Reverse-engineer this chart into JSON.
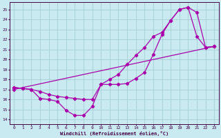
{
  "xlabel": "Windchill (Refroidissement éolien,°C)",
  "bg_color": "#c8eaf0",
  "line_color": "#aa00aa",
  "grid_color": "#a0c8d0",
  "xlim": [
    -0.5,
    23.5
  ],
  "ylim": [
    13.5,
    25.7
  ],
  "yticks": [
    14,
    15,
    16,
    17,
    18,
    19,
    20,
    21,
    22,
    23,
    24,
    25
  ],
  "xticks": [
    0,
    1,
    2,
    3,
    4,
    5,
    6,
    7,
    8,
    9,
    10,
    11,
    12,
    13,
    14,
    15,
    16,
    17,
    18,
    19,
    20,
    21,
    22,
    23
  ],
  "series": [
    {
      "x": [
        0,
        1,
        2,
        3,
        4,
        5,
        6,
        7,
        8,
        9,
        10,
        11,
        12,
        13,
        14,
        15,
        16,
        17,
        18,
        19,
        20,
        21,
        22,
        23
      ],
      "y": [
        17.2,
        17.1,
        17.0,
        16.1,
        16.0,
        15.8,
        14.9,
        14.4,
        14.4,
        15.3,
        17.5,
        17.5,
        17.5,
        17.6,
        18.1,
        18.7,
        20.5,
        22.5,
        23.9,
        25.0,
        25.2,
        24.7,
        21.2,
        21.3
      ]
    },
    {
      "x": [
        0,
        1,
        2,
        3,
        4,
        5,
        6,
        7,
        8,
        9,
        10,
        11,
        12,
        13,
        14,
        15,
        16,
        17,
        18,
        19,
        20,
        21,
        22,
        23
      ],
      "y": [
        17.2,
        17.1,
        17.0,
        16.8,
        16.5,
        16.3,
        16.2,
        16.1,
        16.0,
        16.0,
        17.5,
        18.0,
        18.5,
        19.5,
        20.4,
        21.2,
        22.3,
        22.7,
        23.9,
        25.0,
        25.2,
        22.3,
        21.2,
        21.3
      ]
    },
    {
      "x": [
        0,
        23
      ],
      "y": [
        17.0,
        21.3
      ]
    }
  ]
}
